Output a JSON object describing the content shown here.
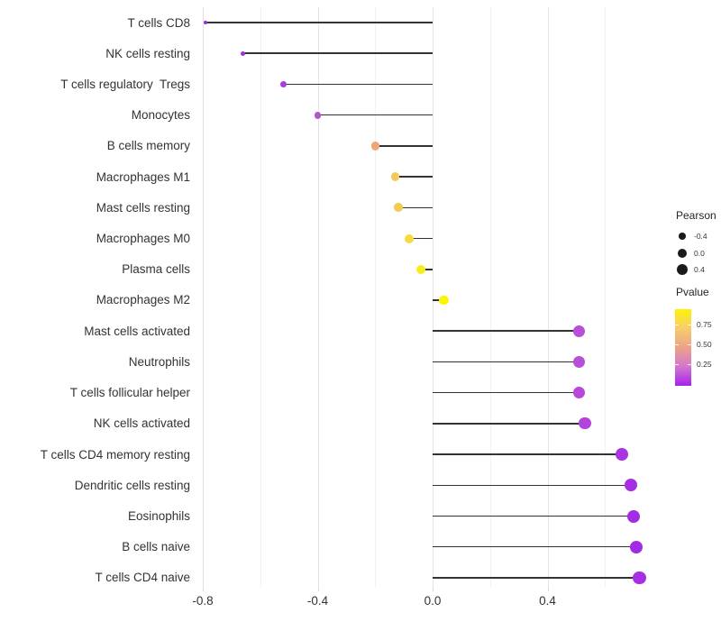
{
  "chart_data": {
    "type": "lollipop",
    "title": "",
    "xlabel": "",
    "ylabel": "",
    "xlim": [
      -0.85,
      0.75
    ],
    "grid": true,
    "baseline_x": 0,
    "x_major_ticks": [
      -0.8,
      -0.4,
      0,
      0.4
    ],
    "x_major_tick_labels": [
      "-0.8",
      "-0.4",
      "0.0",
      "0.4"
    ],
    "x_minor_ticks": [
      -0.6,
      -0.2,
      0.2,
      0.6
    ],
    "points": [
      {
        "label": "T cells CD8",
        "pearson": -0.79,
        "pvalue_approx": 0.04,
        "color": "#9A2CE0"
      },
      {
        "label": "NK cells resting",
        "pearson": -0.66,
        "pvalue_approx": 0.06,
        "color": "#9C30DD"
      },
      {
        "label": "T cells regulatory  Tregs",
        "pearson": -0.52,
        "pvalue_approx": 0.12,
        "color": "#A83ED7"
      },
      {
        "label": "Monocytes",
        "pearson": -0.4,
        "pvalue_approx": 0.19,
        "color": "#B552CE"
      },
      {
        "label": "B cells memory",
        "pearson": -0.2,
        "pvalue_approx": 0.5,
        "color": "#EDA678"
      },
      {
        "label": "Macrophages M1",
        "pearson": -0.13,
        "pvalue_approx": 0.64,
        "color": "#F2C95C"
      },
      {
        "label": "Mast cells resting",
        "pearson": -0.12,
        "pvalue_approx": 0.65,
        "color": "#F2CB55"
      },
      {
        "label": "Macrophages M0",
        "pearson": -0.08,
        "pvalue_approx": 0.72,
        "color": "#F5DC3B"
      },
      {
        "label": "Plasma cells",
        "pearson": -0.04,
        "pvalue_approx": 0.8,
        "color": "#F8EC1C"
      },
      {
        "label": "Macrophages M2",
        "pearson": 0.04,
        "pvalue_approx": 0.87,
        "color": "#FBF607"
      },
      {
        "label": "Mast cells activated",
        "pearson": 0.51,
        "pvalue_approx": 0.18,
        "color": "#BA4FD7"
      },
      {
        "label": "Neutrophils",
        "pearson": 0.51,
        "pvalue_approx": 0.18,
        "color": "#B94ED7"
      },
      {
        "label": "T cells follicular helper",
        "pearson": 0.51,
        "pvalue_approx": 0.16,
        "color": "#B748D9"
      },
      {
        "label": "NK cells activated",
        "pearson": 0.53,
        "pvalue_approx": 0.14,
        "color": "#B343DB"
      },
      {
        "label": "T cells CD4 memory resting",
        "pearson": 0.66,
        "pvalue_approx": 0.07,
        "color": "#A835E0"
      },
      {
        "label": "Dendritic cells resting",
        "pearson": 0.69,
        "pvalue_approx": 0.05,
        "color": "#A52FE2"
      },
      {
        "label": "Eosinophils",
        "pearson": 0.7,
        "pvalue_approx": 0.04,
        "color": "#A32DE3"
      },
      {
        "label": "B cells naive",
        "pearson": 0.71,
        "pvalue_approx": 0.04,
        "color": "#A22BE4"
      },
      {
        "label": "T cells CD4 naive",
        "pearson": 0.72,
        "pvalue_approx": 0.03,
        "color": "#A62FE3"
      }
    ],
    "legend_size": {
      "title": "Pearson",
      "entries": [
        {
          "label": "-0.4",
          "value": -0.4
        },
        {
          "label": "0.0",
          "value": 0.0
        },
        {
          "label": "0.4",
          "value": 0.4
        }
      ],
      "dot_color": "#1A1A1A"
    },
    "legend_color": {
      "title": "Pvalue",
      "tick_labels": [
        "0.75",
        "0.50",
        "0.25"
      ],
      "tick_positions_pct": [
        20,
        46,
        72
      ],
      "gradient_stops_top_to_bottom": [
        "#FDF403",
        "#F6CD6E",
        "#EDA287",
        "#D377CE",
        "#A522EE"
      ],
      "high_color": "#FDF403",
      "low_color": "#A522EE"
    },
    "style": {
      "stem_color": "#333333",
      "grid_major_color": "#E4E4E4",
      "grid_minor_color": "#F2F2F2",
      "axis_text_color": "#333333",
      "background": "#FFFFFF"
    }
  }
}
